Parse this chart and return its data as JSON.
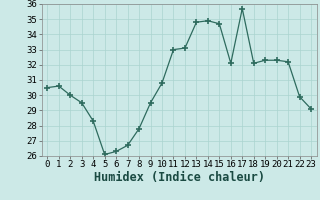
{
  "x": [
    0,
    1,
    2,
    3,
    4,
    5,
    6,
    7,
    8,
    9,
    10,
    11,
    12,
    13,
    14,
    15,
    16,
    17,
    18,
    19,
    20,
    21,
    22,
    23
  ],
  "y": [
    30.5,
    30.6,
    30.0,
    29.5,
    28.3,
    26.1,
    26.3,
    26.7,
    27.8,
    29.5,
    30.8,
    33.0,
    33.1,
    34.8,
    34.9,
    34.7,
    32.1,
    35.7,
    32.1,
    32.3,
    32.3,
    32.2,
    29.9,
    29.1
  ],
  "xlabel": "Humidex (Indice chaleur)",
  "ylim": [
    26,
    36
  ],
  "xlim": [
    -0.5,
    23.5
  ],
  "yticks": [
    26,
    27,
    28,
    29,
    30,
    31,
    32,
    33,
    34,
    35,
    36
  ],
  "xticks": [
    0,
    1,
    2,
    3,
    4,
    5,
    6,
    7,
    8,
    9,
    10,
    11,
    12,
    13,
    14,
    15,
    16,
    17,
    18,
    19,
    20,
    21,
    22,
    23
  ],
  "line_color": "#2e6b5e",
  "marker_color": "#2e6b5e",
  "bg_color": "#cce9e7",
  "grid_color": "#aad4d0",
  "tick_fontsize": 6.5,
  "xlabel_fontsize": 8.5
}
